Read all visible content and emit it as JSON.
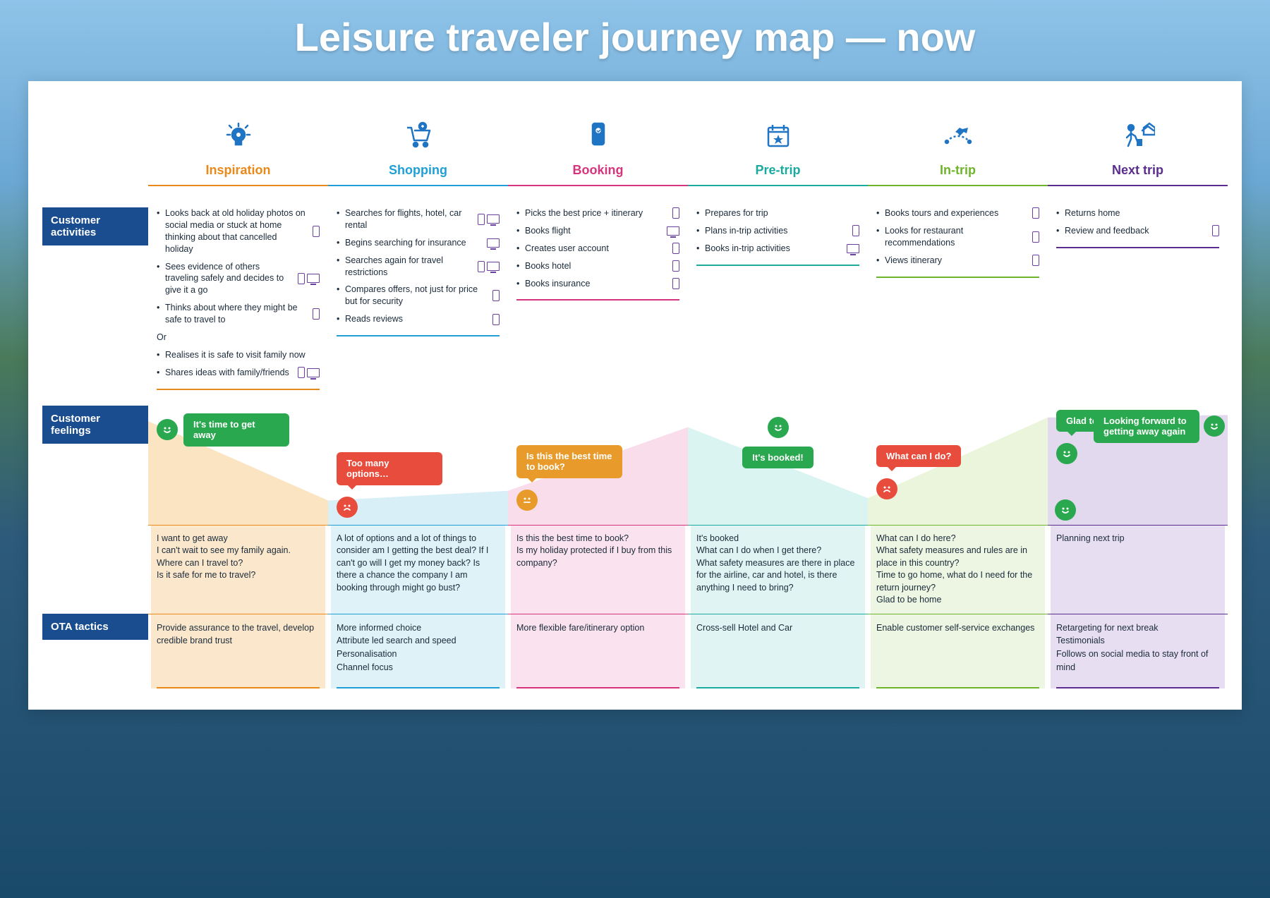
{
  "title": "Leisure traveler journey map — now",
  "row_labels": {
    "activities": "Customer activities",
    "feelings": "Customer feelings",
    "tactics": "OTA tactics"
  },
  "colors": {
    "icon_base": "#1f74c4",
    "label_bg": "#1a4d8f",
    "face_happy": "#2aa84f",
    "face_sad": "#e84c3d",
    "face_neutral": "#e89b2a"
  },
  "stages": [
    {
      "key": "inspiration",
      "name": "Inspiration",
      "color": "#e8891a",
      "tint": "#f7d29a",
      "activities": [
        {
          "text": "Looks back at old holiday photos on social media or stuck at home thinking about that cancelled holiday",
          "devices": [
            "phone"
          ]
        },
        {
          "text": "Sees evidence of others traveling safely and decides to give it a go",
          "devices": [
            "phone",
            "desktop"
          ]
        },
        {
          "text": "Thinks about where they might be safe to travel to",
          "devices": [
            "phone"
          ]
        },
        {
          "text": "Or",
          "no_bullet": true
        },
        {
          "text": "Realises it is safe to visit family now"
        },
        {
          "text": "Shares ideas with family/friends",
          "devices": [
            "phone",
            "desktop"
          ]
        }
      ],
      "feeling": {
        "bubble": "It's time to get away",
        "bubble_color": "#2aa84f",
        "face": "happy",
        "face_pos": "left",
        "y": 15
      },
      "thoughts": "I want to get away\nI can't wait to see my family again.\nWhere can I travel to?\nIs it safe for me to travel?",
      "tactics": "Provide assurance to the travel, develop credible brand trust"
    },
    {
      "key": "shopping",
      "name": "Shopping",
      "color": "#1f9fd6",
      "tint": "#bfe5f1",
      "activities": [
        {
          "text": "Searches for flights, hotel, car rental",
          "devices": [
            "phone",
            "desktop"
          ]
        },
        {
          "text": "Begins searching for insurance",
          "devices": [
            "desktop"
          ]
        },
        {
          "text": "Searches again for travel restrictions",
          "devices": [
            "phone",
            "desktop"
          ]
        },
        {
          "text": "Compares offers, not just for price but for security",
          "devices": [
            "phone"
          ]
        },
        {
          "text": "Reads reviews",
          "devices": [
            "phone"
          ]
        }
      ],
      "feeling": {
        "bubble": "Too many options…",
        "bubble_color": "#e84c3d",
        "face": "sad",
        "face_pos": "below",
        "y": 70
      },
      "thoughts": "A lot of options and a lot of things to consider am I getting the best deal? If I can't go will I get my money back? Is there a chance the company I am booking through might go bust?",
      "tactics": "More informed choice\nAttribute led search and speed\nPersonalisation\nChannel focus"
    },
    {
      "key": "booking",
      "name": "Booking",
      "color": "#d6347c",
      "tint": "#f5c7dd",
      "activities": [
        {
          "text": "Picks the best price + itinerary",
          "devices": [
            "phone"
          ]
        },
        {
          "text": "Books flight",
          "devices": [
            "desktop"
          ]
        },
        {
          "text": "Creates user account",
          "devices": [
            "phone"
          ]
        },
        {
          "text": "Books hotel",
          "devices": [
            "phone"
          ]
        },
        {
          "text": "Books insurance",
          "devices": [
            "phone"
          ]
        }
      ],
      "feeling": {
        "bubble": "Is this the best time to book?",
        "bubble_color": "#e89b2a",
        "face": "neutral",
        "face_pos": "below",
        "y": 60
      },
      "thoughts": "Is this the best time to book?\nIs my holiday protected if I buy from this company?",
      "tactics": "More flexible fare/itinerary option"
    },
    {
      "key": "pretrip",
      "name": "Pre-trip",
      "color": "#1aaaa0",
      "tint": "#c2ece8",
      "activities": [
        {
          "text": "Prepares for trip"
        },
        {
          "text": "Plans in-trip activities",
          "devices": [
            "phone"
          ]
        },
        {
          "text": "Books in-trip activities",
          "devices": [
            "desktop"
          ]
        }
      ],
      "feeling": {
        "bubble": "It's booked!",
        "bubble_color": "#2aa84f",
        "face": "happy",
        "face_pos": "above",
        "y": 20
      },
      "thoughts": "It's booked\nWhat can I do when I get there?\nWhat safety measures are there in place for the airline, car and hotel, is there anything I need to bring?",
      "tactics": "Cross-sell Hotel and Car"
    },
    {
      "key": "intrip",
      "name": "In-trip",
      "color": "#6fb52c",
      "tint": "#dceec5",
      "activities": [
        {
          "text": "Books tours and experiences",
          "devices": [
            "phone"
          ]
        },
        {
          "text": "Looks for restaurant recommendations",
          "devices": [
            "phone"
          ]
        },
        {
          "text": "Views itinerary",
          "devices": [
            "phone"
          ]
        }
      ],
      "feeling": {
        "bubble": "What can I do?",
        "bubble_color": "#e84c3d",
        "face": "sad",
        "face_pos": "below",
        "y": 60
      },
      "thoughts": "What can I do here?\nWhat safety measures and rules are in place in this country?\nTime to go home, what do I need for the return journey?\nGlad to be home",
      "tactics": "Enable customer self-service exchanges"
    },
    {
      "key": "nexttrip",
      "name": "Next trip",
      "color": "#5a2d8f",
      "tint": "#d0bfe3",
      "activities": [
        {
          "text": "Returns home"
        },
        {
          "text": "Review and feedback",
          "devices": [
            "phone"
          ]
        }
      ],
      "feeling": {
        "bubble": "Glad to be home.",
        "bubble_color": "#2aa84f",
        "face": "happy",
        "face_pos": "below-left",
        "y": 10,
        "bubble2": "Looking forward to getting away again",
        "bubble2_color": "#2aa84f",
        "face2": "happy"
      },
      "thoughts": "Planning next trip",
      "tactics": "Retargeting for next break\nTestimonials\nFollows on social media to stay front of mind"
    }
  ],
  "sentiment_curve": {
    "points_y_pct": [
      15,
      80,
      72,
      20,
      78,
      12,
      10
    ],
    "description": "happy→sad→neutral→happy→sad→happy→happy"
  }
}
